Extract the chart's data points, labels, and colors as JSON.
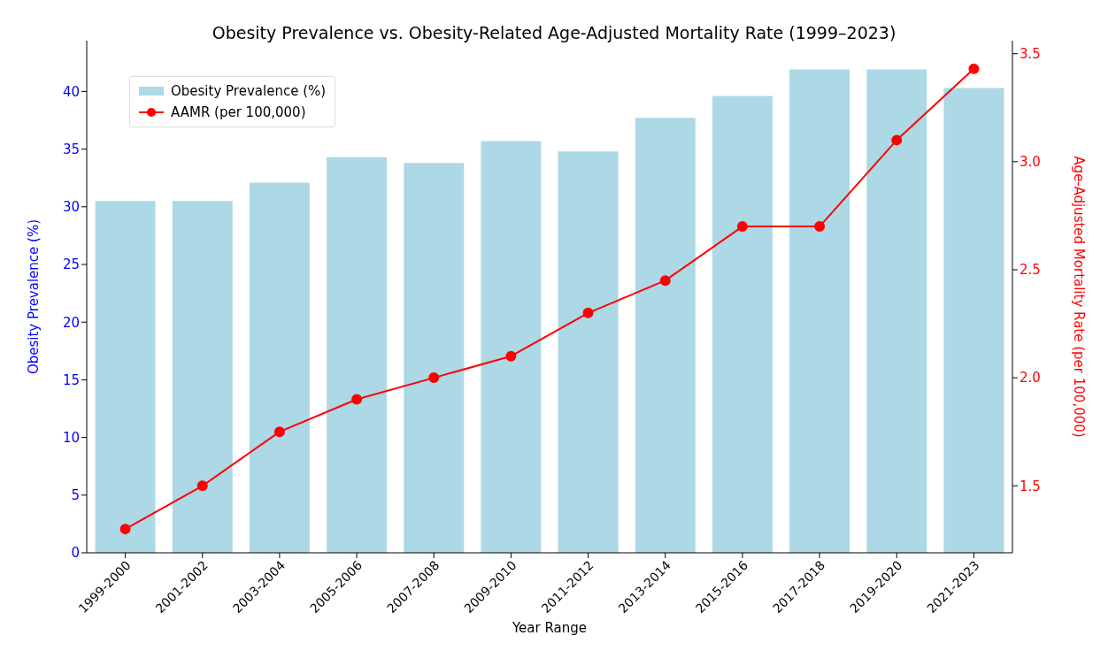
{
  "chart_data": {
    "type": "bar",
    "title": "Obesity Prevalence vs. Obesity-Related Age-Adjusted Mortality Rate (1999–2023)",
    "xlabel": "Year Range",
    "ylabel": "Obesity Prevalence (%)",
    "y2label": "Age-Adjusted Mortality Rate (per 100,000)",
    "categories": [
      "1999-2000",
      "2001-2002",
      "2003-2004",
      "2005-2006",
      "2007-2008",
      "2009-2010",
      "2011-2012",
      "2013-2014",
      "2015-2016",
      "2017-2018",
      "2019-2020",
      "2021-2023"
    ],
    "series": [
      {
        "name": "Obesity Prevalence (%)",
        "color": "#add8e6",
        "values": [
          30.5,
          30.5,
          32.1,
          34.3,
          33.8,
          35.7,
          34.8,
          37.7,
          39.6,
          41.9,
          41.9,
          40.3
        ]
      },
      {
        "name": "AAMR (per 100,000)",
        "type": "line",
        "axis": "y2",
        "color": "#ff0000",
        "marker": "circle",
        "values": [
          1.3,
          1.5,
          1.75,
          1.9,
          2.0,
          2.1,
          2.3,
          2.45,
          2.7,
          2.7,
          3.1,
          3.43
        ]
      }
    ],
    "ylim": [
      0,
      44.4
    ],
    "yticks": [
      0,
      5,
      10,
      15,
      20,
      25,
      30,
      35,
      40
    ],
    "y2lim": [
      1.19,
      3.56
    ],
    "y2ticks": [
      {
        "value": 1.5,
        "label": "1.5"
      },
      {
        "value": 2.0,
        "label": "2.0"
      },
      {
        "value": 2.5,
        "label": "2.5"
      },
      {
        "value": 3.0,
        "label": "3.0"
      },
      {
        "value": 3.5,
        "label": "3.5"
      }
    ],
    "legend": "top left"
  }
}
